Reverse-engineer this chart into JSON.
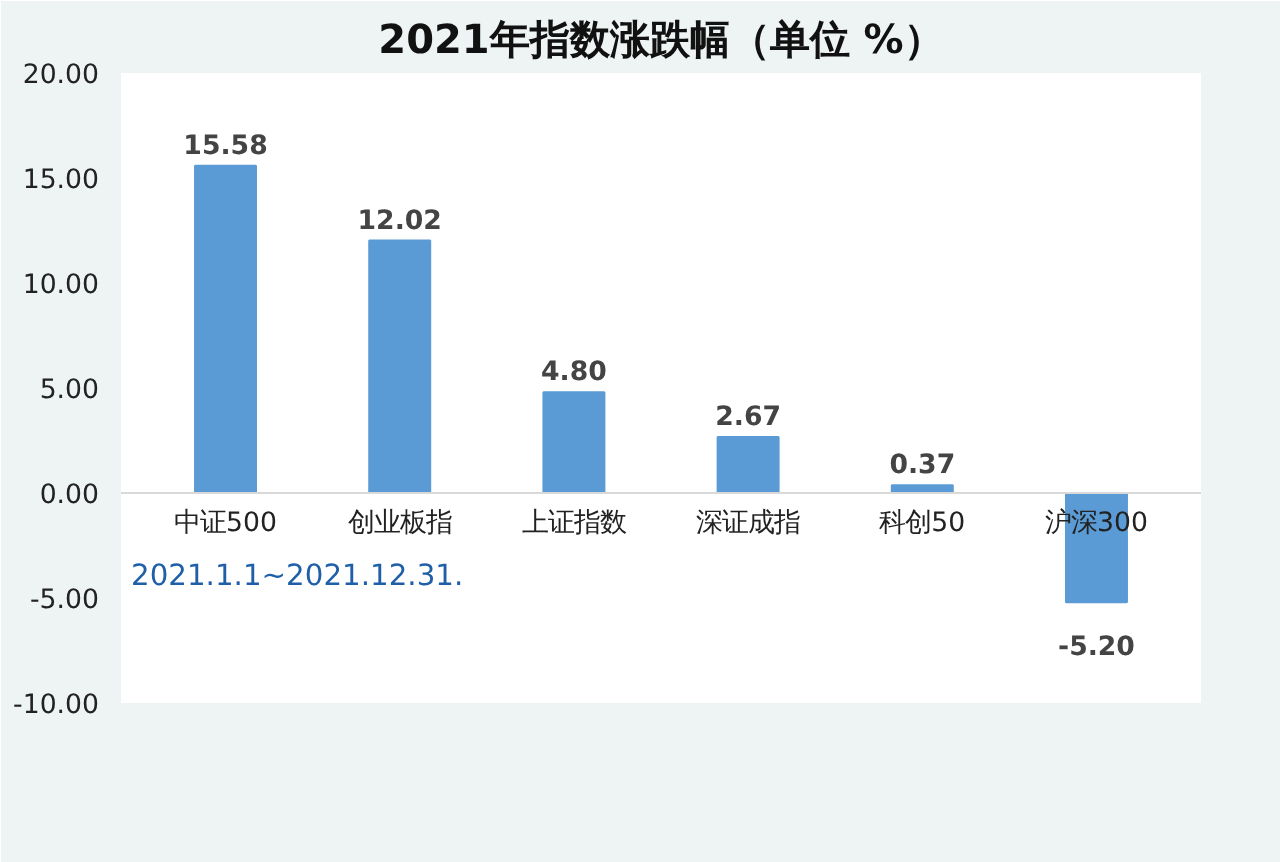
{
  "chart_data": {
    "type": "bar",
    "title": "2021年指数涨跌幅（单位 %）",
    "categories": [
      "中证500",
      "创业板指",
      "上证指数",
      "深证成指",
      "科创50",
      "沪深300"
    ],
    "values": [
      15.58,
      12.02,
      4.8,
      2.67,
      0.37,
      -5.2
    ],
    "value_labels": [
      "15.58",
      "12.02",
      "4.80",
      "2.67",
      "0.37",
      "-5.20"
    ],
    "color": "#5b9bd5",
    "ylim": [
      -10,
      20
    ],
    "yticks": [
      {
        "value": -10,
        "label": "-10.00"
      },
      {
        "value": -5,
        "label": "-5.00"
      },
      {
        "value": 0,
        "label": "0.00"
      },
      {
        "value": 5,
        "label": "5.00"
      },
      {
        "value": 10,
        "label": "10.00"
      },
      {
        "value": 15,
        "label": "15.00"
      },
      {
        "value": 20,
        "label": "20.00"
      }
    ],
    "grid": false,
    "annotations": [
      "2021.1.1~2021.12.31."
    ]
  }
}
